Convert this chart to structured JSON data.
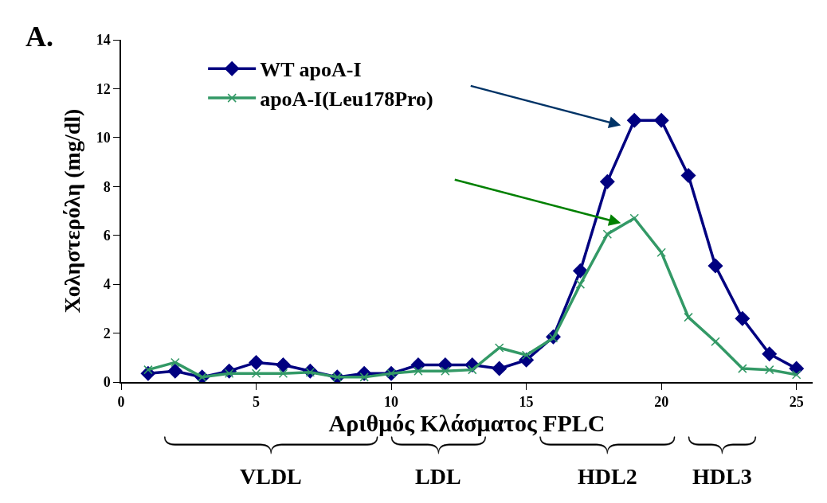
{
  "chart_data": {
    "type": "line",
    "xlabel": "Αριθμός Κλάσματος FPLC",
    "ylabel": "Χοληστερόλη (mg/dl)",
    "annotations": [
      "A.",
      "VLDL",
      "LDL",
      "HDL2",
      "HDL3"
    ],
    "x": [
      1,
      2,
      3,
      4,
      5,
      6,
      7,
      8,
      9,
      10,
      11,
      12,
      13,
      14,
      15,
      16,
      17,
      18,
      19,
      20,
      21,
      22,
      23,
      24,
      25
    ],
    "series": [
      {
        "name": "WT apoA-I",
        "color": "#000080",
        "marker": "diamond",
        "values": [
          0.35,
          0.45,
          0.2,
          0.45,
          0.8,
          0.7,
          0.45,
          0.2,
          0.35,
          0.35,
          0.7,
          0.7,
          0.7,
          0.55,
          0.9,
          1.85,
          4.55,
          8.2,
          10.7,
          10.7,
          8.45,
          4.75,
          2.6,
          1.15,
          0.55
        ]
      },
      {
        "name": "apoA-I(Leu178Pro)",
        "color": "#339966",
        "marker": "cross",
        "values": [
          0.5,
          0.8,
          0.2,
          0.35,
          0.35,
          0.35,
          0.4,
          0.2,
          0.2,
          0.35,
          0.45,
          0.45,
          0.5,
          1.4,
          1.1,
          1.8,
          4.0,
          6.05,
          6.7,
          5.3,
          2.65,
          1.65,
          0.55,
          0.5,
          0.3
        ]
      }
    ],
    "xlim": [
      0,
      25.6
    ],
    "xticks": [
      0,
      5,
      10,
      15,
      20,
      25
    ],
    "ylim": [
      0,
      14
    ],
    "yticks": [
      0,
      2,
      4,
      6,
      8,
      10,
      12,
      14
    ],
    "legend": "top left"
  }
}
